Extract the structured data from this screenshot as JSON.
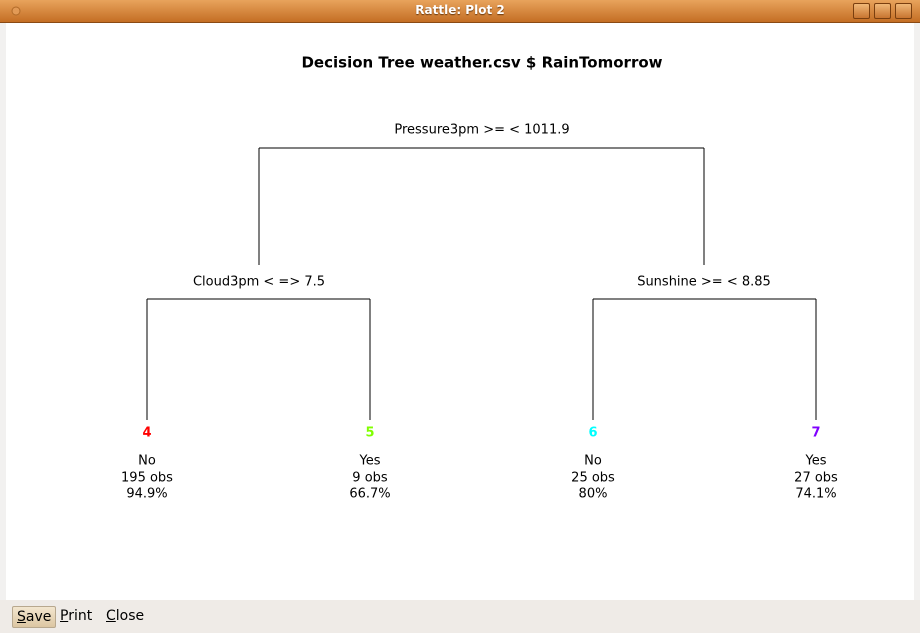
{
  "window": {
    "title": "Rattle: Plot 2"
  },
  "plot": {
    "title": "Decision Tree weather.csv $ RainTomorrow",
    "nodes": [
      {
        "label": "Pressure3pm >= < 1011.9"
      },
      {
        "label": "Cloud3pm < => 7.5"
      },
      {
        "label": "Sunshine >= < 8.85"
      }
    ],
    "leaves": [
      {
        "id": 4,
        "color": "#ff0000",
        "class": "No",
        "obs": "195 obs",
        "pct": "94.9%"
      },
      {
        "id": 5,
        "color": "#80ff00",
        "class": "Yes",
        "obs": "9 obs",
        "pct": "66.7%"
      },
      {
        "id": 6,
        "color": "#00ffff",
        "class": "No",
        "obs": "25 obs",
        "pct": "80%"
      },
      {
        "id": 7,
        "color": "#8000ff",
        "class": "Yes",
        "obs": "27 obs",
        "pct": "74.1%"
      }
    ]
  },
  "buttons": [
    "Save",
    "Print",
    "Close"
  ]
}
